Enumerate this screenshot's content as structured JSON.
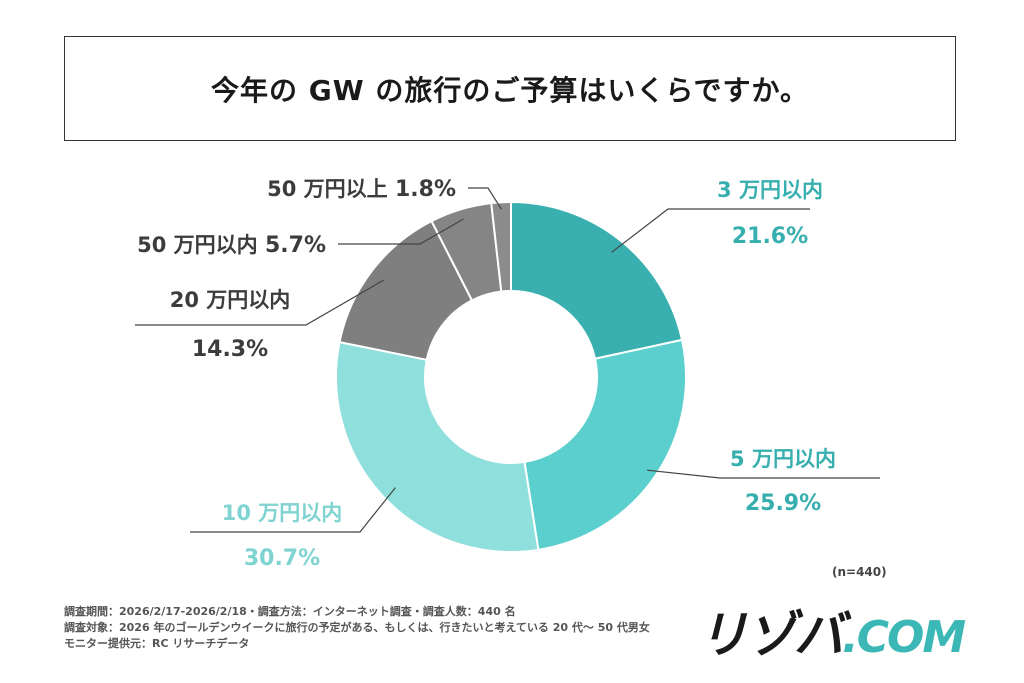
{
  "title": "今年の GW の旅行のご予算はいくらですか。",
  "chart_data": {
    "type": "pie",
    "title": "今年の GW の旅行のご予算はいくらですか。",
    "donut": true,
    "start_angle_deg": 0,
    "direction": "clockwise",
    "categories": [
      "3 万円以内",
      "5 万円以内",
      "10 万円以内",
      "20 万円以内",
      "50 万円以内",
      "50 万円以上"
    ],
    "values": [
      21.6,
      25.9,
      30.7,
      14.3,
      5.7,
      1.8
    ],
    "value_labels": [
      "21.6%",
      "25.9%",
      "30.7%",
      "14.3%",
      "5.7%",
      "1.8%"
    ],
    "colors": [
      "#3aafb0",
      "#5bcfcd",
      "#8fdfdc",
      "#7f7f7f",
      "#858585",
      "#8c8c8c"
    ],
    "label_colors": [
      "#37afae",
      "#37afae",
      "#7fd3d0",
      "#3c3c3c",
      "#3c3c3c",
      "#3c3c3c"
    ]
  },
  "sample_size": "(n=440)",
  "footnote": {
    "line1": "調査期間：2026/2/17-2026/2/18・調査方法：インターネット調査・調査人数：440 名",
    "line2": "調査対象：2026 年のゴールデンウイークに旅行の予定がある、もしくは、行きたいと考えている 20 代～ 50 代男女",
    "line3": "モニター提供元：RC リサーチデータ"
  },
  "logo": {
    "main": "リゾバ",
    "suffix": ".COM"
  }
}
